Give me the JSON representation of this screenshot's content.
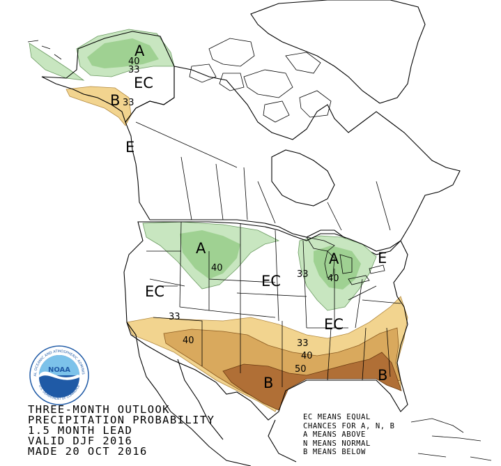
{
  "caption": {
    "line1": "THREE-MONTH OUTLOOK",
    "line2": "PRECIPITATION PROBABILITY",
    "line3": "1.5 MONTH LEAD",
    "line4": "VALID DJF 2016",
    "line5": "MADE 20 OCT 2016"
  },
  "legend": {
    "line1": "EC MEANS EQUAL",
    "line2": "CHANCES FOR A, N, B",
    "line3": "A MEANS ABOVE",
    "line4": "N MEANS NORMAL",
    "line5": "B MEANS BELOW"
  },
  "logo": {
    "text": "NOAA",
    "ring_text": "NATIONAL OCEANIC AND ATMOSPHERIC ADMINISTRATION",
    "ring_text_bottom": "U.S. DEPARTMENT OF COMMERCE"
  },
  "zones": {
    "alaska_above": "A",
    "alaska_ec": "EC",
    "alaska_below": "B",
    "pacific_nw_ec": "E",
    "northern_plains_above": "A",
    "great_lakes_above": "A",
    "new_england_ec": "E",
    "west_ec": "EC",
    "central_ec": "EC",
    "southeast_ec": "EC",
    "south_below": "B",
    "southeast_below": "B"
  },
  "contours": {
    "ak_40": "40",
    "ak_33": "33",
    "ak_b_33": "33",
    "np_40": "40",
    "gl_33": "33",
    "gl_40": "40",
    "sw_33": "33",
    "sw_40": "40",
    "se_33": "33",
    "se_40": "40",
    "se_50": "50"
  },
  "colors": {
    "above_33": "#c8e6c0",
    "above_40": "#9fd192",
    "below_33": "#f2d48f",
    "below_40": "#d9a95d",
    "below_50": "#b06f36",
    "ocean": "#ffffff",
    "land_outline": "#000000",
    "logo_blue": "#1f5aa6",
    "logo_sky": "#7cc2ea"
  }
}
